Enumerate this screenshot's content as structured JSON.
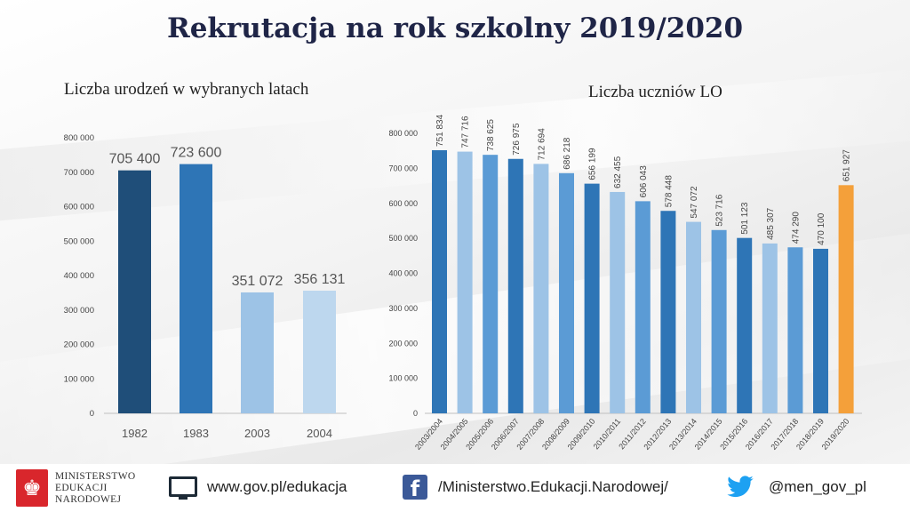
{
  "title": "Rekrutacja na rok szkolny 2019/2020",
  "chart_data": [
    {
      "type": "bar",
      "title": "Liczba urodzeń w wybranych latach",
      "categories": [
        "1982",
        "1983",
        "2003",
        "2004"
      ],
      "values": [
        705400,
        723600,
        351072,
        356131
      ],
      "value_labels": [
        "705 400",
        "723 600",
        "351 072",
        "356 131"
      ],
      "colors": [
        "#1f4e79",
        "#2e75b6",
        "#9dc3e6",
        "#bdd7ee"
      ],
      "yticks": [
        "0",
        "100 000",
        "200 000",
        "300 000",
        "400 000",
        "500 000",
        "600 000",
        "700 000",
        "800 000"
      ],
      "ylim": [
        0,
        800000
      ],
      "xlabel": "",
      "ylabel": "",
      "grid": false
    },
    {
      "type": "bar",
      "title": "Liczba uczniów LO",
      "categories": [
        "2003/2004",
        "2004/2005",
        "2005/2006",
        "2006/2007",
        "2007/2008",
        "2008/2009",
        "2009/2010",
        "2010/2011",
        "2011/2012",
        "2012/2013",
        "2013/2014",
        "2014/2015",
        "2015/2016",
        "2016/2017",
        "2017/2018",
        "2018/2019",
        "2019/2020"
      ],
      "values": [
        751834,
        747716,
        738625,
        726975,
        712694,
        686218,
        656199,
        632455,
        606043,
        578448,
        547072,
        523716,
        501123,
        485307,
        474290,
        470100,
        651927
      ],
      "value_labels": [
        "751 834",
        "747 716",
        "738 625",
        "726 975",
        "712 694",
        "686 218",
        "656 199",
        "632 455",
        "606 043",
        "578 448",
        "547 072",
        "523 716",
        "501 123",
        "485 307",
        "474 290",
        "470 100",
        "651 927"
      ],
      "colors": [
        "#2e75b6",
        "#9dc3e6",
        "#5b9bd5",
        "#2e75b6",
        "#9dc3e6",
        "#5b9bd5",
        "#2e75b6",
        "#9dc3e6",
        "#5b9bd5",
        "#2e75b6",
        "#9dc3e6",
        "#5b9bd5",
        "#2e75b6",
        "#9dc3e6",
        "#5b9bd5",
        "#2e75b6",
        "#f4a03a"
      ],
      "yticks": [
        "0",
        "100 000",
        "200 000",
        "300 000",
        "400 000",
        "500 000",
        "600 000",
        "700 000",
        "800 000"
      ],
      "ylim": [
        0,
        800000
      ],
      "xlabel": "",
      "ylabel": "",
      "grid": false
    }
  ],
  "footer": {
    "ministry_lines": [
      "MINISTERSTWO",
      "EDUKACJI",
      "NARODOWEJ"
    ],
    "website": "www.gov.pl/edukacja",
    "facebook": "/Ministerstwo.Edukacji.Narodowej/",
    "twitter": "@men_gov_pl",
    "icons": [
      "monitor-icon",
      "facebook-icon",
      "twitter-icon"
    ],
    "logo_color": "#d9262c"
  }
}
